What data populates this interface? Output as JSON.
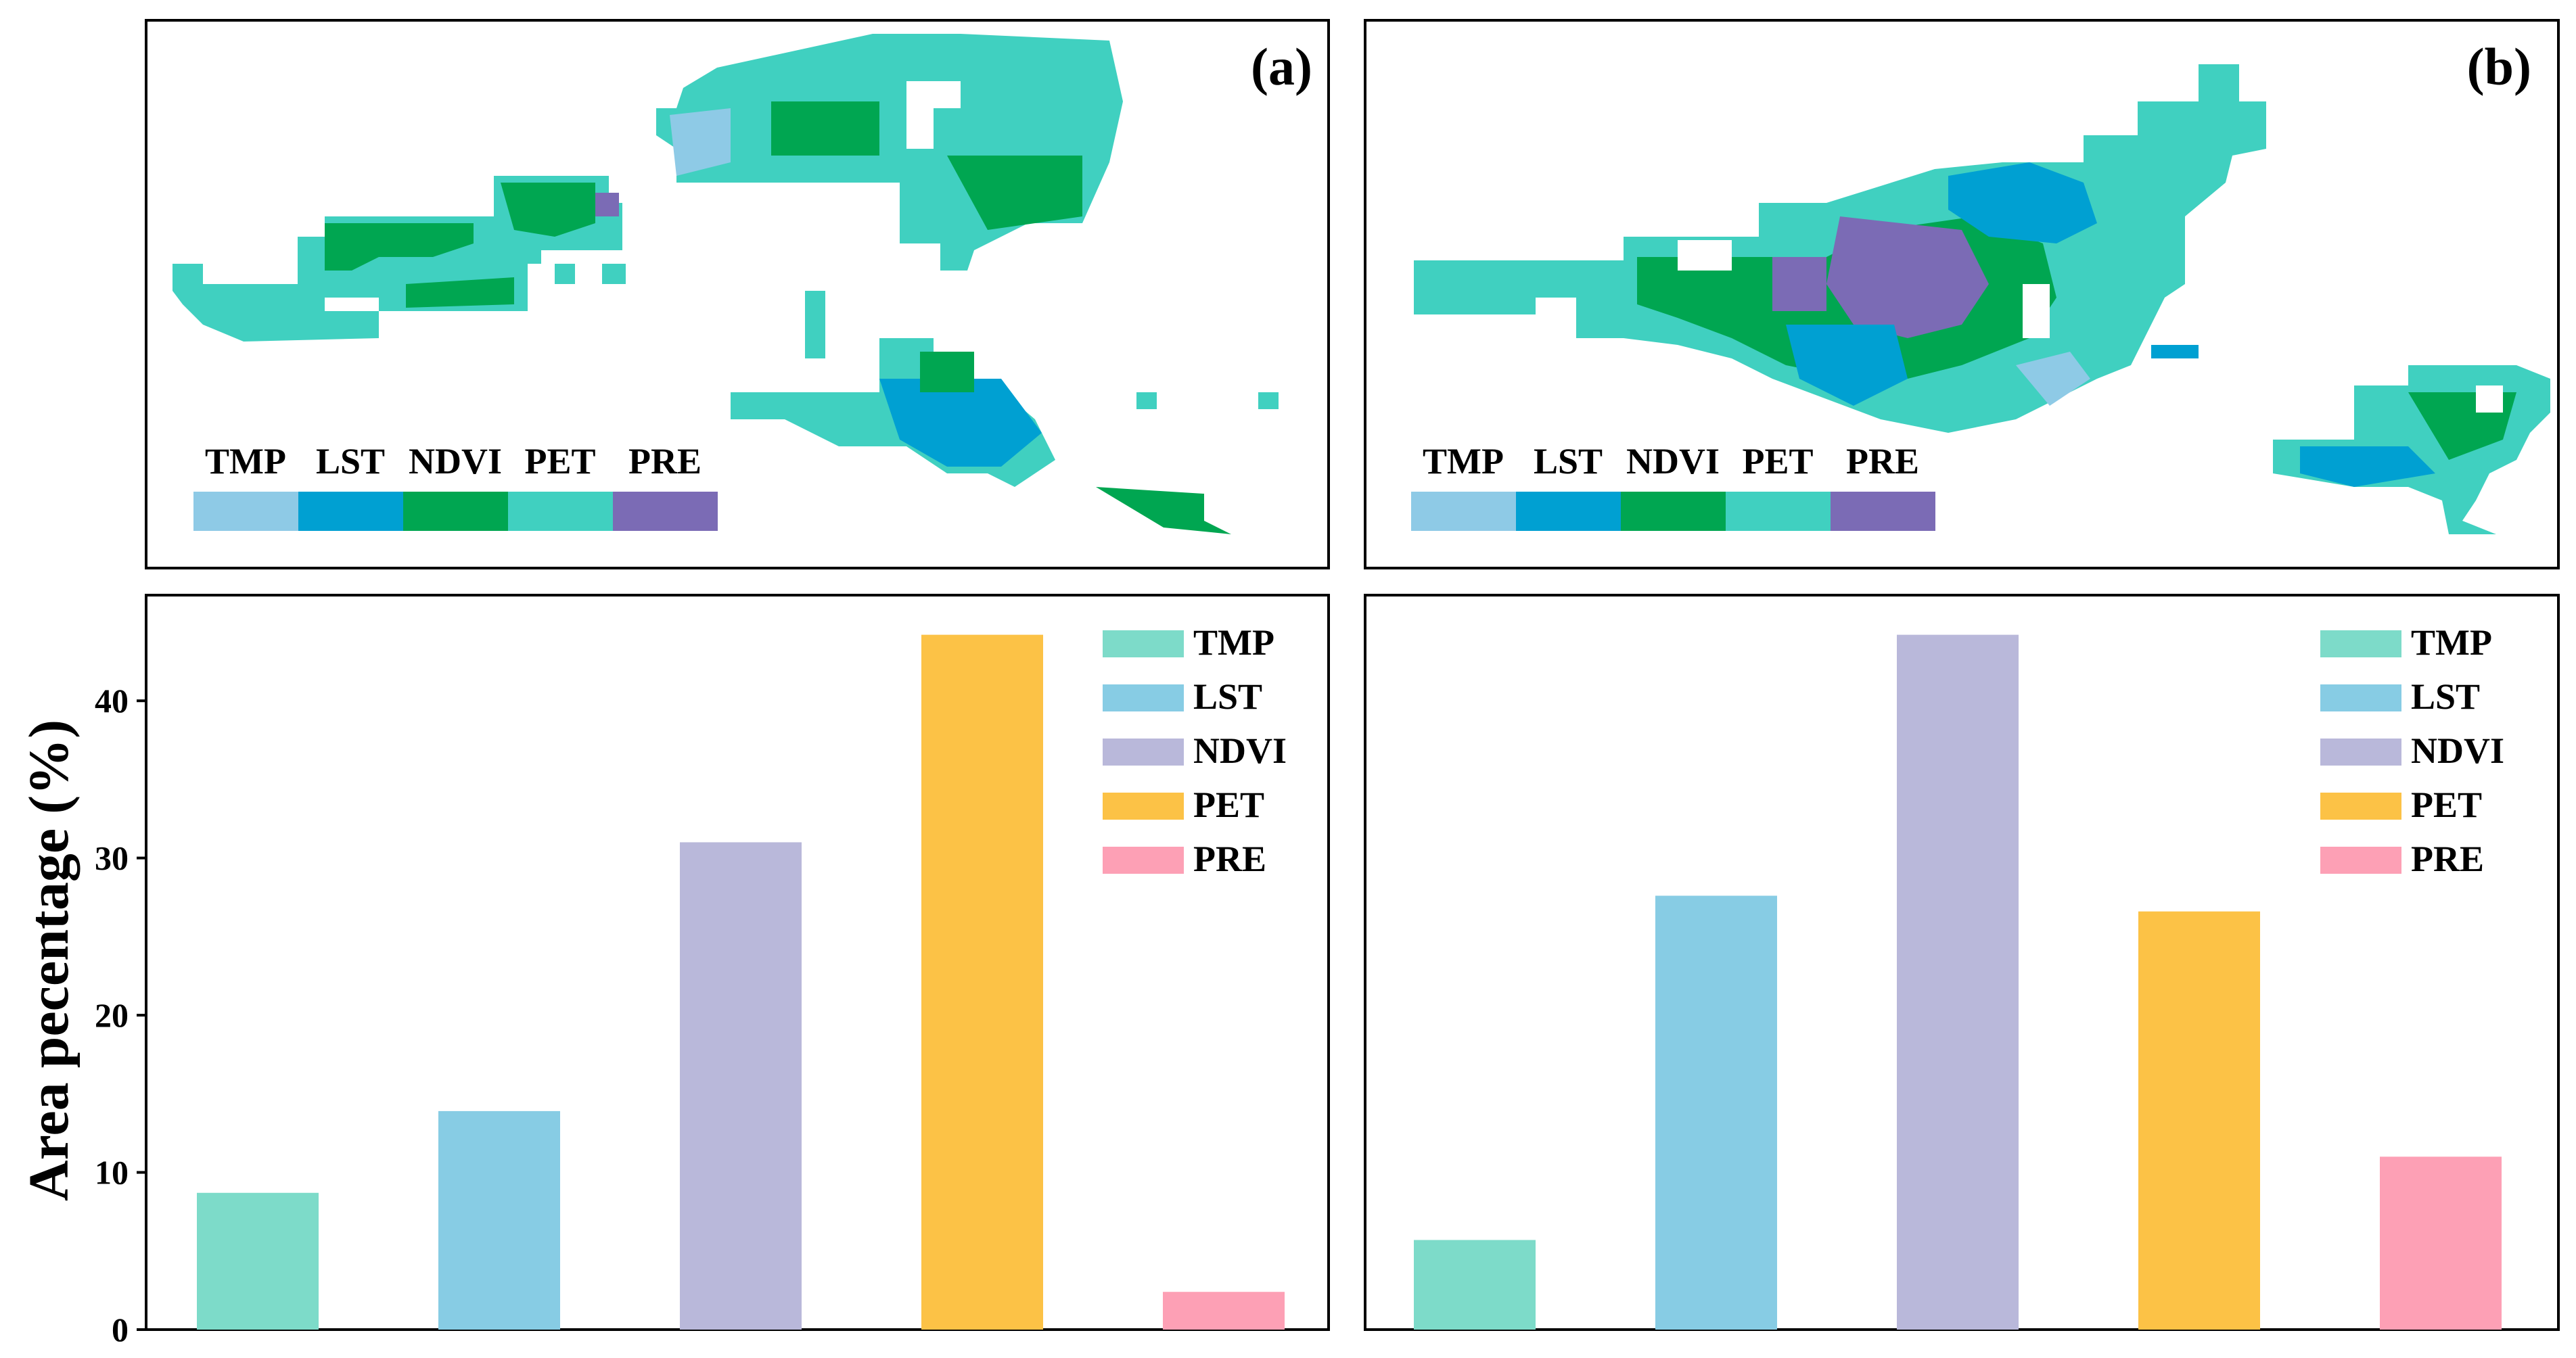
{
  "map_panels": [
    {
      "label": "(a)",
      "legend": [
        {
          "name": "TMP",
          "color": "#8ecae6"
        },
        {
          "name": "LST",
          "color": "#00a0d2"
        },
        {
          "name": "NDVI",
          "color": "#00a651"
        },
        {
          "name": "PET",
          "color": "#40d0c0"
        },
        {
          "name": "PRE",
          "color": "#7b6bb5"
        }
      ]
    },
    {
      "label": "(b)",
      "legend": [
        {
          "name": "TMP",
          "color": "#8ecae6"
        },
        {
          "name": "LST",
          "color": "#00a0d2"
        },
        {
          "name": "NDVI",
          "color": "#00a651"
        },
        {
          "name": "PET",
          "color": "#40d0c0"
        },
        {
          "name": "PRE",
          "color": "#7b6bb5"
        }
      ]
    }
  ],
  "chart_data": [
    {
      "type": "bar",
      "title": "",
      "xlabel": "",
      "ylabel": "Area pecentage (%)",
      "ylim": [
        0,
        45
      ],
      "yticks": [
        0,
        10,
        20,
        30,
        40
      ],
      "categories": [
        "TMP",
        "LST",
        "NDVI",
        "PET",
        "PRE"
      ],
      "values": [
        8.7,
        13.9,
        31.0,
        44.2,
        2.4
      ],
      "colors": [
        "#7ddbc9",
        "#87cce4",
        "#b9b8da",
        "#fcc246",
        "#fda0b5"
      ],
      "legend_position": "top-right"
    },
    {
      "type": "bar",
      "title": "",
      "xlabel": "",
      "ylabel": "",
      "ylim": [
        0,
        45
      ],
      "yticks": [],
      "categories": [
        "TMP",
        "LST",
        "NDVI",
        "PET",
        "PRE"
      ],
      "values": [
        5.7,
        27.6,
        44.2,
        26.6,
        11.0
      ],
      "colors": [
        "#7ddbc9",
        "#87cce4",
        "#b9b8da",
        "#fcc246",
        "#fda0b5"
      ],
      "legend_position": "top-right"
    }
  ]
}
